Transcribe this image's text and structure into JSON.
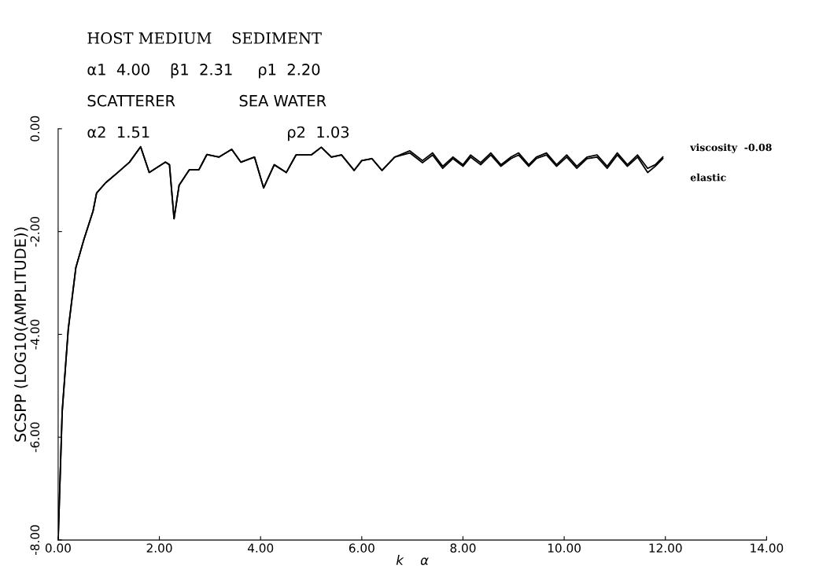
{
  "chart_data": {
    "type": "line",
    "xlabel": "k    α",
    "ylabel": "SCSPP (LOG10(AMPLITUDE))",
    "annotations": [
      "HOST MEDIUM    SEDIMENT",
      "α1  4.00    β1  2.31     ρ1  2.20",
      "SCATTERER             SEA WATER",
      "α2  1.51                            ρ2  1.03"
    ],
    "xlim": [
      0,
      14
    ],
    "xticks": [
      {
        "value": 0,
        "label": "0.00"
      },
      {
        "value": 2,
        "label": "2.00"
      },
      {
        "value": 4,
        "label": "4.00"
      },
      {
        "value": 6,
        "label": "6.00"
      },
      {
        "value": 8,
        "label": "8.00"
      },
      {
        "value": 10,
        "label": "10.00"
      },
      {
        "value": 12,
        "label": "12.00"
      },
      {
        "value": 14,
        "label": "14.00"
      }
    ],
    "ylim": [
      -8,
      0
    ],
    "yticks": [
      {
        "value": 0,
        "label": "0.00"
      },
      {
        "value": -2,
        "label": "-2.00"
      },
      {
        "value": -4,
        "label": "-4.00"
      },
      {
        "value": -6,
        "label": "-6.00"
      },
      {
        "value": -8,
        "label": "-8.00"
      }
    ],
    "grid": false,
    "legend": false,
    "marker": "none",
    "line_style": "solid",
    "series": [
      {
        "name": "viscosity  -0.08",
        "color": "#000000",
        "x": [
          0.0,
          0.08,
          0.2,
          0.35,
          0.51,
          0.69,
          0.76,
          0.94,
          1.18,
          1.41,
          1.63,
          1.8,
          2.12,
          2.2,
          2.29,
          2.39,
          2.59,
          2.78,
          2.94,
          3.18,
          3.43,
          3.61,
          3.88,
          4.06,
          4.27,
          4.51,
          4.7,
          5.0,
          5.2,
          5.4,
          5.6,
          5.85,
          6.0,
          6.2,
          6.4,
          6.65,
          6.95,
          7.2,
          7.4,
          7.6,
          7.8,
          8.0,
          8.15,
          8.35,
          8.55,
          8.75,
          8.95,
          9.1,
          9.3,
          9.45,
          9.65,
          9.85,
          10.05,
          10.25,
          10.45,
          10.65,
          10.85,
          11.05,
          11.25,
          11.45,
          11.65,
          11.8,
          11.95
        ],
        "values": [
          -8.0,
          -5.5,
          -3.9,
          -2.7,
          -2.15,
          -1.6,
          -1.25,
          -1.05,
          -0.85,
          -0.65,
          -0.35,
          -0.85,
          -0.65,
          -0.7,
          -1.75,
          -1.1,
          -0.8,
          -0.8,
          -0.5,
          -0.55,
          -0.4,
          -0.65,
          -0.55,
          -1.15,
          -0.7,
          -0.85,
          -0.51,
          -0.51,
          -0.36,
          -0.55,
          -0.51,
          -0.81,
          -0.62,
          -0.58,
          -0.81,
          -0.55,
          -0.43,
          -0.62,
          -0.47,
          -0.73,
          -0.55,
          -0.7,
          -0.51,
          -0.66,
          -0.47,
          -0.7,
          -0.55,
          -0.47,
          -0.7,
          -0.55,
          -0.47,
          -0.7,
          -0.51,
          -0.73,
          -0.55,
          -0.51,
          -0.73,
          -0.47,
          -0.7,
          -0.51,
          -0.77,
          -0.7,
          -0.55
        ]
      },
      {
        "name": "elastic",
        "color": "#000000",
        "x": [
          0.0,
          0.08,
          0.2,
          0.35,
          0.51,
          0.69,
          0.76,
          0.94,
          1.18,
          1.41,
          1.63,
          1.8,
          2.12,
          2.2,
          2.29,
          2.39,
          2.59,
          2.78,
          2.94,
          3.18,
          3.43,
          3.61,
          3.88,
          4.06,
          4.27,
          4.51,
          4.7,
          5.0,
          5.2,
          5.4,
          5.6,
          5.85,
          6.0,
          6.2,
          6.4,
          6.65,
          6.95,
          7.2,
          7.4,
          7.6,
          7.8,
          8.0,
          8.15,
          8.35,
          8.55,
          8.75,
          8.95,
          9.1,
          9.3,
          9.45,
          9.65,
          9.85,
          10.05,
          10.25,
          10.45,
          10.65,
          10.85,
          11.05,
          11.25,
          11.45,
          11.65,
          11.8,
          11.95
        ],
        "values": [
          -8.0,
          -5.5,
          -3.9,
          -2.7,
          -2.15,
          -1.6,
          -1.25,
          -1.05,
          -0.85,
          -0.65,
          -0.35,
          -0.85,
          -0.65,
          -0.7,
          -1.75,
          -1.1,
          -0.8,
          -0.8,
          -0.5,
          -0.55,
          -0.4,
          -0.65,
          -0.55,
          -1.15,
          -0.7,
          -0.85,
          -0.51,
          -0.51,
          -0.36,
          -0.55,
          -0.51,
          -0.81,
          -0.62,
          -0.58,
          -0.81,
          -0.55,
          -0.47,
          -0.66,
          -0.51,
          -0.77,
          -0.58,
          -0.73,
          -0.55,
          -0.7,
          -0.51,
          -0.73,
          -0.58,
          -0.51,
          -0.73,
          -0.58,
          -0.51,
          -0.73,
          -0.55,
          -0.77,
          -0.58,
          -0.55,
          -0.77,
          -0.51,
          -0.73,
          -0.55,
          -0.85,
          -0.73,
          -0.58
        ]
      }
    ]
  }
}
